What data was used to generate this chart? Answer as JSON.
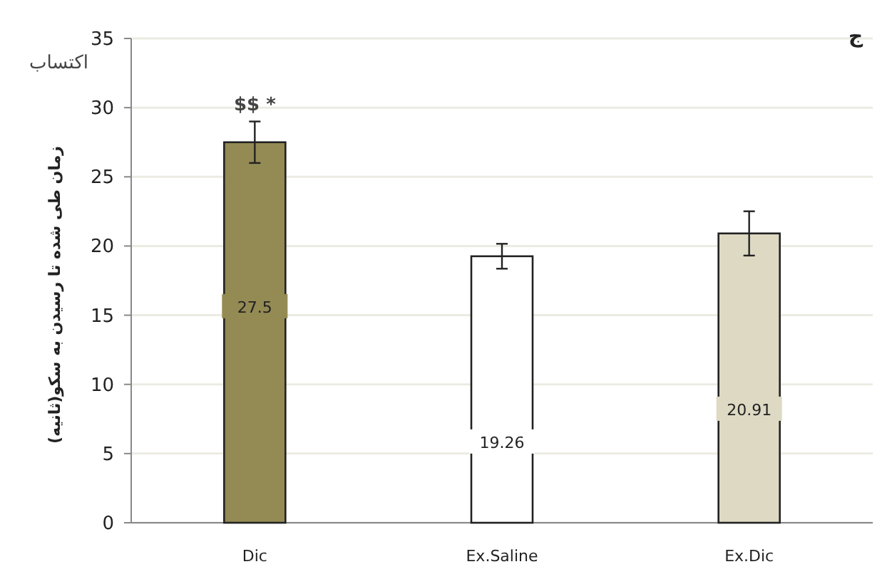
{
  "chart_data": {
    "type": "bar",
    "title": "اکتساب",
    "ylabel": "زمان طی شده تا رسیدن به سکو(ثانیه)",
    "annotations": [
      "ج",
      {
        "text": "$$ *",
        "x": "Dic",
        "y": 29
      }
    ],
    "categories": [
      "Dic",
      "Ex.Saline",
      "Ex.Dic"
    ],
    "values": [
      27.5,
      19.26,
      20.91
    ],
    "colors": [
      "#948a54",
      "#ffffff",
      "#ddd9c3"
    ],
    "errors": [
      1.5,
      0.9,
      1.6
    ],
    "data_labels": true,
    "ylim": [
      0,
      35
    ],
    "yticks": [
      0,
      5,
      10,
      15,
      20,
      25,
      30,
      35
    ],
    "grid": "y"
  }
}
